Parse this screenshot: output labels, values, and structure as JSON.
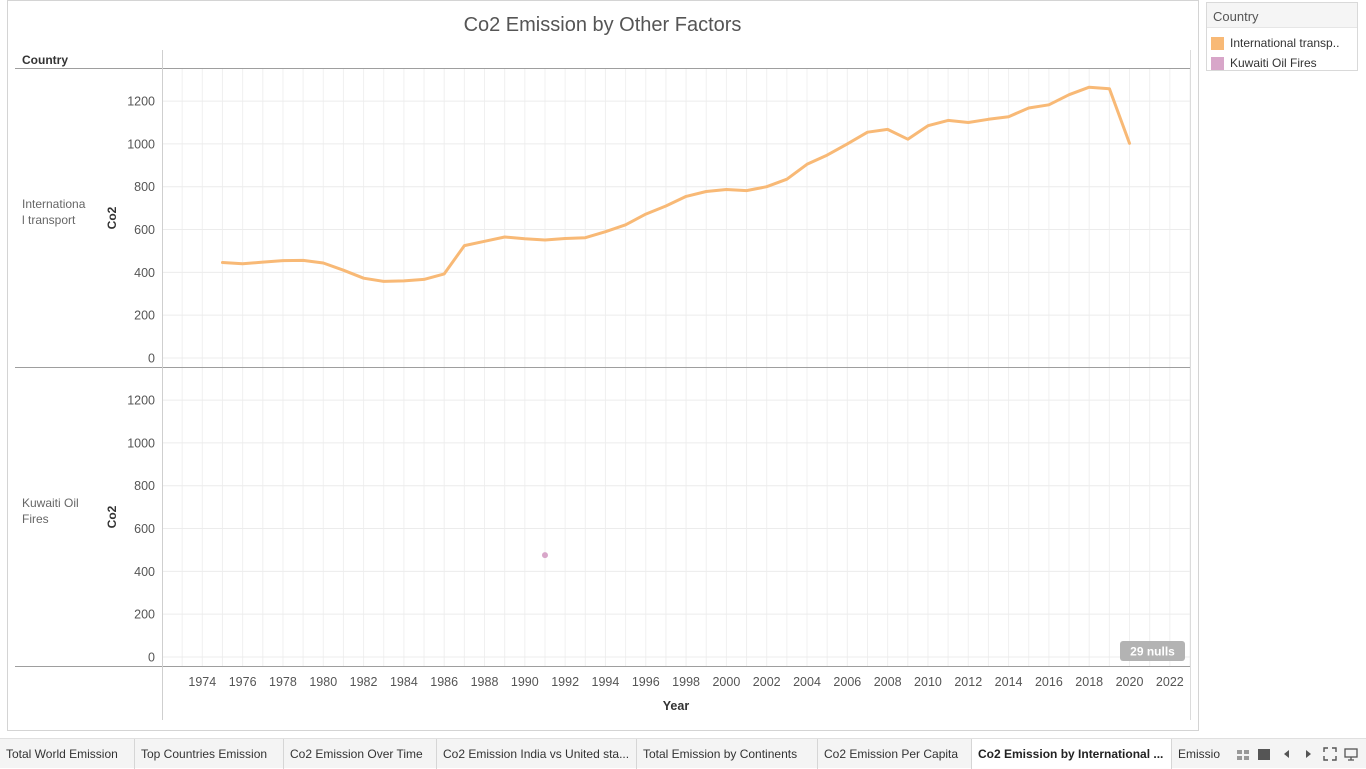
{
  "title": "Co2 Emission by Other Factors",
  "header_label": "Country",
  "legend": {
    "title": "Country",
    "items": [
      {
        "label": "International transp..",
        "color": "#f8b976"
      },
      {
        "label": "Kuwaiti Oil Fires",
        "color": "#d8a6c9"
      }
    ]
  },
  "nulls_badge": "29 nulls",
  "chart_data": {
    "type": "line",
    "title": "Co2 Emission by Other Factors",
    "xlabel": "Year",
    "ylabel": "Co2",
    "xlim": [
      1972,
      2023
    ],
    "ylim": [
      0,
      1350
    ],
    "x_ticks": [
      "1974",
      "1976",
      "1978",
      "1980",
      "1982",
      "1984",
      "1986",
      "1988",
      "1990",
      "1992",
      "1994",
      "1996",
      "1998",
      "2000",
      "2002",
      "2004",
      "2006",
      "2008",
      "2010",
      "2012",
      "2014",
      "2016",
      "2018",
      "2020",
      "2022"
    ],
    "y_ticks": [
      "0",
      "200",
      "400",
      "600",
      "800",
      "1000",
      "1200"
    ],
    "grid": true,
    "legend_position": "top-right",
    "panels": [
      {
        "name": "International transport",
        "row_label": "Internationa l transport",
        "color": "#f8b976",
        "x": [
          1975,
          1976,
          1977,
          1978,
          1979,
          1980,
          1981,
          1982,
          1983,
          1984,
          1985,
          1986,
          1987,
          1988,
          1989,
          1990,
          1991,
          1992,
          1993,
          1994,
          1995,
          1996,
          1997,
          1998,
          1999,
          2000,
          2001,
          2002,
          2003,
          2004,
          2005,
          2006,
          2007,
          2008,
          2009,
          2010,
          2011,
          2012,
          2013,
          2014,
          2015,
          2016,
          2017,
          2018,
          2019,
          2020
        ],
        "y": [
          446,
          440,
          448,
          455,
          456,
          444,
          410,
          373,
          358,
          360,
          367,
          393,
          525,
          545,
          565,
          557,
          551,
          558,
          562,
          590,
          622,
          672,
          710,
          755,
          778,
          787,
          782,
          800,
          835,
          905,
          948,
          1000,
          1055,
          1068,
          1022,
          1085,
          1110,
          1100,
          1115,
          1127,
          1168,
          1183,
          1230,
          1265,
          1258,
          1003
        ]
      },
      {
        "name": "Kuwaiti Oil Fires",
        "row_label": "Kuwaiti Oil Fires",
        "color": "#d8a6c9",
        "x": [
          1991
        ],
        "y": [
          476
        ]
      }
    ]
  },
  "tabs": [
    {
      "label": "Total World Emission"
    },
    {
      "label": "Top Countries Emission"
    },
    {
      "label": "Co2 Emission Over Time"
    },
    {
      "label": "Co2 Emission India vs United sta..."
    },
    {
      "label": "Total Emission by Continents"
    },
    {
      "label": "Co2 Emission Per Capita"
    },
    {
      "label": "Co2 Emission by International ...",
      "active": true
    },
    {
      "label": "Emissio"
    }
  ],
  "nav_icons": [
    "grid-view-icon",
    "single-view-icon",
    "previous-sheet-icon",
    "next-sheet-icon",
    "fullscreen-icon",
    "present-icon"
  ]
}
